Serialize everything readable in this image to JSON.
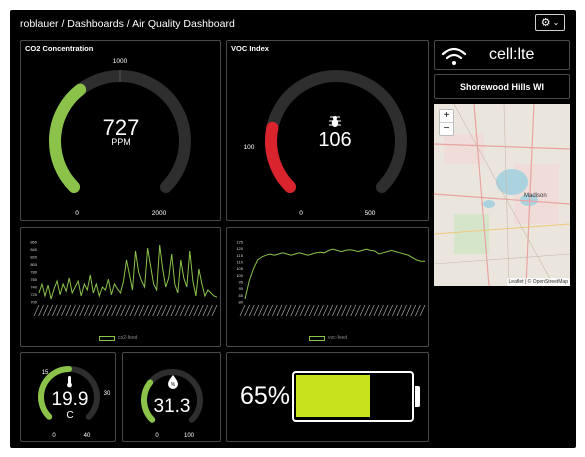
{
  "header": {
    "breadcrumb": "roblauer / Dashboards / Air Quality Dashboard",
    "settings_icon": "gear-icon"
  },
  "co2_gauge": {
    "title": "CO2 Concentration",
    "value": "727",
    "unit": "PPM",
    "min": "0",
    "max": "2000",
    "marker": "1000",
    "fill_color": "#8bc34a",
    "fill_fraction": 0.36
  },
  "voc_gauge": {
    "title": "VOC Index",
    "value": "106",
    "min": "0",
    "max": "500",
    "marker": "100",
    "icon": "bug-icon",
    "fill_color": "#d9232d",
    "fill_fraction": 0.21
  },
  "connectivity": {
    "icon": "wifi-icon",
    "label": "cell:lte"
  },
  "location": {
    "label": "Shorewood Hills WI"
  },
  "map": {
    "zoom_in": "+",
    "zoom_out": "−",
    "city_label": "Madison",
    "attribution": "Leaflet | © OpenStreetMap"
  },
  "co2_chart": {
    "legend": "co2-feed",
    "ytick_labels": [
      "860",
      "840",
      "820",
      "800",
      "780",
      "760",
      "740",
      "720",
      "700"
    ],
    "line_color": "#8bc34a"
  },
  "voc_chart": {
    "legend": "voc-feed",
    "ytick_labels": [
      "125",
      "120",
      "115",
      "110",
      "105",
      "100",
      "95",
      "90",
      "85",
      "80"
    ],
    "line_color": "#8bc34a"
  },
  "temp_gauge": {
    "value": "19.9",
    "unit": "C",
    "min": "0",
    "max": "40",
    "marker_low": "15",
    "marker_high": "30",
    "icon": "thermometer-icon",
    "fill_fraction": 0.5
  },
  "humidity_gauge": {
    "value": "31.3",
    "min": "0",
    "max": "100",
    "icon": "percent-icon",
    "fill_fraction": 0.31
  },
  "battery": {
    "value": "65%",
    "level": 0.65,
    "fill_color": "#c6e31b"
  }
}
